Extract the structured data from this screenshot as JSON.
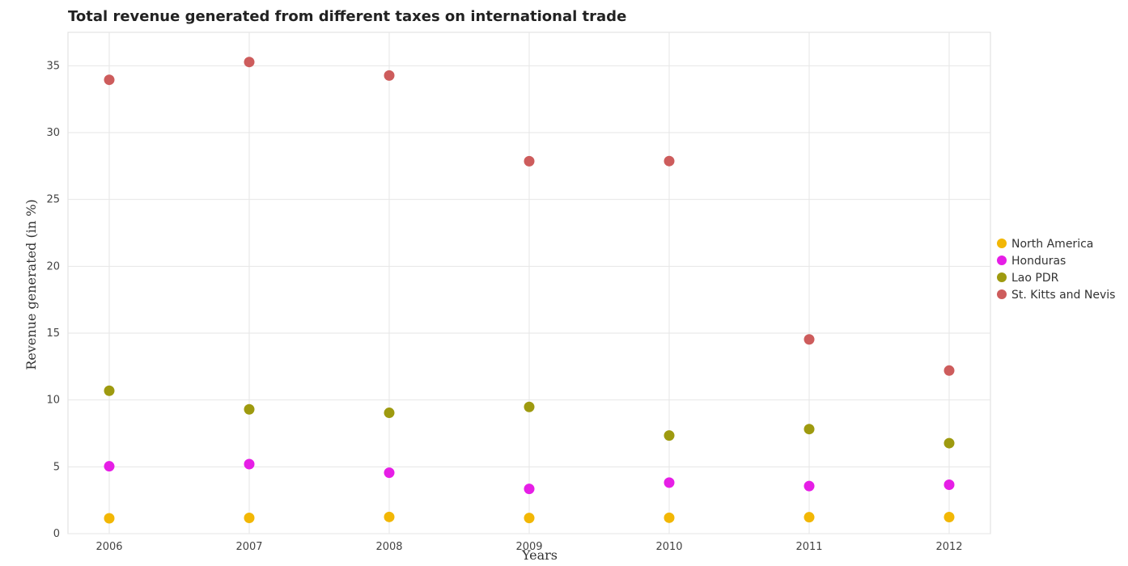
{
  "chart_data": {
    "type": "scatter",
    "title": "Total revenue generated from different taxes on international trade",
    "xlabel": "Years",
    "ylabel": "Revenue generated (in %)",
    "categories": [
      "2006",
      "2007",
      "2008",
      "2009",
      "2010",
      "2011",
      "2012"
    ],
    "ylim": [
      0,
      37.5
    ],
    "yticks": [
      0,
      5,
      10,
      15,
      20,
      25,
      30,
      35
    ],
    "grid": true,
    "legend_position": "right",
    "series": [
      {
        "name": "North America",
        "color": "#f2b705",
        "values": [
          1.15,
          1.18,
          1.25,
          1.17,
          1.19,
          1.23,
          1.24
        ]
      },
      {
        "name": "Honduras",
        "color": "#e61ee6",
        "values": [
          5.04,
          5.2,
          4.56,
          3.35,
          3.82,
          3.56,
          3.66
        ]
      },
      {
        "name": "Lao PDR",
        "color": "#9e9a0f",
        "values": [
          10.69,
          9.3,
          9.04,
          9.48,
          7.34,
          7.82,
          6.77
        ]
      },
      {
        "name": "St. Kitts and Nevis",
        "color": "#cd5c5c",
        "values": [
          33.95,
          35.28,
          34.27,
          27.86,
          27.87,
          14.53,
          12.2
        ]
      }
    ]
  }
}
